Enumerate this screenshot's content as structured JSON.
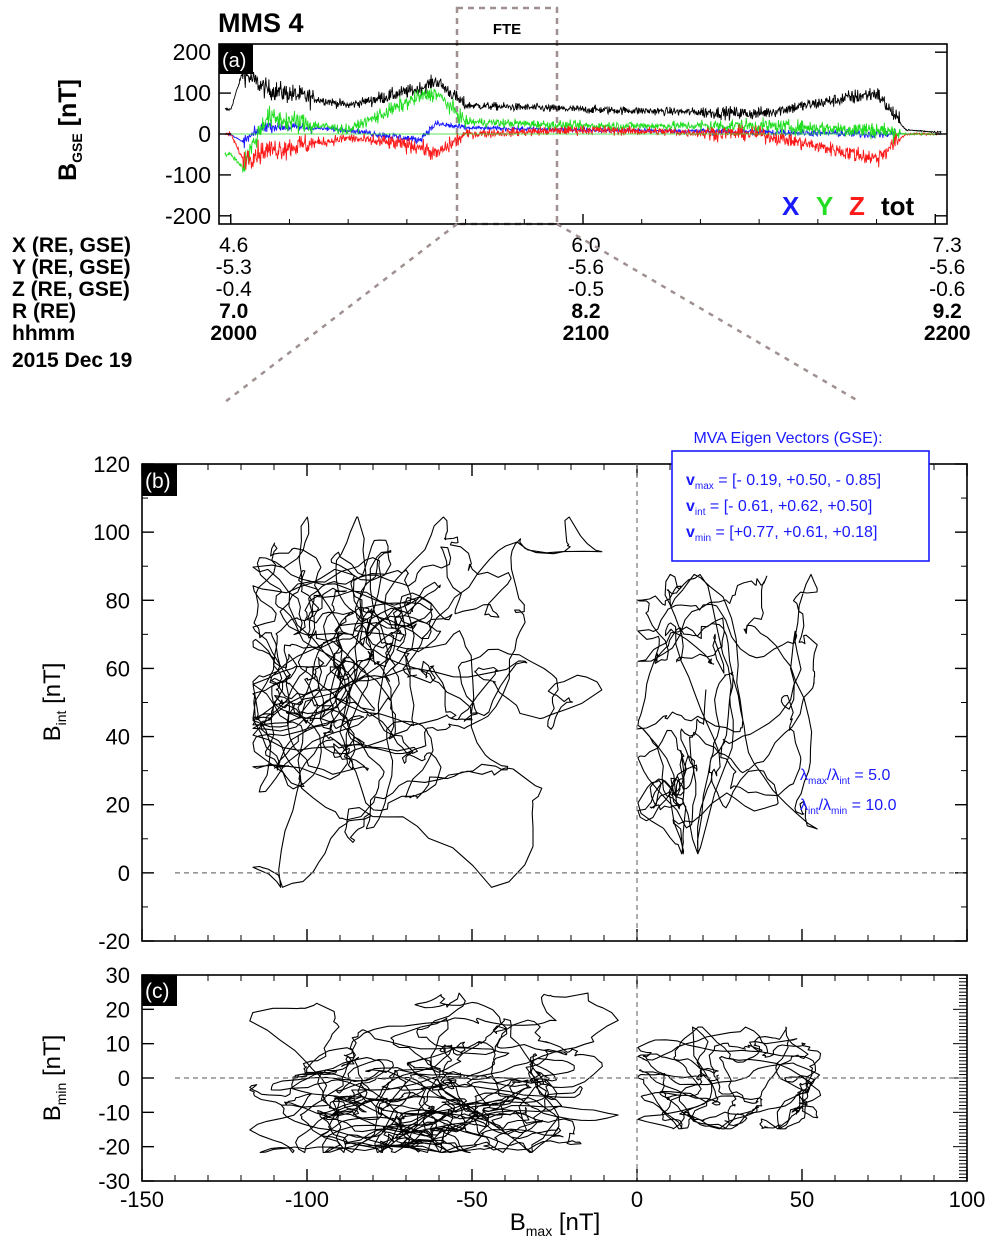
{
  "figure": {
    "spacecraft": "MMS 4",
    "fte_label": "FTE"
  },
  "panel_a": {
    "label": "(a)",
    "ylabel_main": "B",
    "ylabel_sub": "GSE",
    "ylabel_unit": " [nT]",
    "legend": [
      {
        "text": "X",
        "color": "#1a1aff"
      },
      {
        "text": "Y",
        "color": "#22dd22"
      },
      {
        "text": "Z",
        "color": "#ff1a1a"
      },
      {
        "text": "tot",
        "color": "#000000"
      }
    ],
    "orbit_rows": [
      {
        "label": "X (RE, GSE)",
        "values": [
          "4.6",
          "6.0",
          "7.3"
        ],
        "bold": false
      },
      {
        "label": "Y (RE, GSE)",
        "values": [
          "-5.3",
          "-5.6",
          "-5.6"
        ],
        "bold": false
      },
      {
        "label": "Z (RE, GSE)",
        "values": [
          "-0.4",
          "-0.5",
          "-0.6"
        ],
        "bold": false
      },
      {
        "label": "R (RE)",
        "values": [
          "7.0",
          "8.2",
          "9.2"
        ],
        "bold": true
      },
      {
        "label": "hhmm",
        "values": [
          "2000",
          "2100",
          "2200"
        ],
        "bold": true
      }
    ],
    "date": "2015 Dec 19"
  },
  "panel_b": {
    "label": "(b)",
    "ylabel_main": "B",
    "ylabel_sub": "int",
    "ylabel_unit": " [nT]",
    "mva_title": "MVA Eigen Vectors (GSE):",
    "mva_rows": [
      {
        "v": "v",
        "sub": "max",
        "text": " = [- 0.19, +0.50, - 0.85]"
      },
      {
        "v": "v",
        "sub": "int",
        "text": " = [- 0.61, +0.62, +0.50]"
      },
      {
        "v": "v",
        "sub": "min",
        "text": " = [+0.77, +0.61, +0.18]"
      }
    ],
    "ratio1": {
      "a": "max",
      "b": "int",
      "text": " = 5.0"
    },
    "ratio2": {
      "a": "int",
      "b": "min",
      "text": " = 10.0"
    },
    "lambda": "λ"
  },
  "panel_c": {
    "label": "(c)",
    "ylabel_main": "B",
    "ylabel_sub": "min",
    "ylabel_unit": " [nT]",
    "xlabel_main": "B",
    "xlabel_sub": "max",
    "xlabel_unit": " [nT]"
  },
  "chart_data": [
    {
      "type": "line",
      "panel": "a",
      "title": "MMS 4",
      "ylabel": "B_GSE [nT]",
      "x_time_labels": [
        "2000",
        "2100",
        "2200"
      ],
      "ylim": [
        -220,
        220
      ],
      "yticks": [
        -200,
        -100,
        0,
        100,
        200
      ],
      "fte_interval": [
        "~2020",
        "~2051"
      ],
      "series": [
        {
          "name": "X",
          "color": "#1a1aff",
          "approx": {
            "times": [
              "2000",
              "2002",
              "2006",
              "2020",
              "2032",
              "2035",
              "2040",
              "2100",
              "2130",
              "2150",
              "2155",
              "2200"
            ],
            "values": [
              0,
              -20,
              20,
              10,
              -15,
              25,
              15,
              10,
              5,
              0,
              0,
              0
            ]
          }
        },
        {
          "name": "Y",
          "color": "#22dd22",
          "approx": {
            "times": [
              "2000",
              "2002",
              "2006",
              "2020",
              "2032",
              "2035",
              "2040",
              "2100",
              "2130",
              "2150",
              "2155",
              "2200"
            ],
            "values": [
              -50,
              -80,
              40,
              10,
              90,
              100,
              30,
              20,
              20,
              10,
              0,
              0
            ]
          }
        },
        {
          "name": "Z",
          "color": "#ff1a1a",
          "approx": {
            "times": [
              "2000",
              "2002",
              "2006",
              "2020",
              "2032",
              "2035",
              "2040",
              "2100",
              "2130",
              "2150",
              "2155",
              "2200"
            ],
            "values": [
              0,
              -60,
              -40,
              -10,
              -30,
              -50,
              0,
              10,
              0,
              -60,
              0,
              0
            ]
          }
        },
        {
          "name": "tot",
          "color": "#000000",
          "approx": {
            "times": [
              "2000",
              "2002",
              "2006",
              "2020",
              "2032",
              "2035",
              "2040",
              "2100",
              "2130",
              "2150",
              "2155",
              "2200"
            ],
            "values": [
              60,
              150,
              110,
              70,
              110,
              130,
              70,
              60,
              50,
              100,
              10,
              5
            ]
          }
        }
      ]
    },
    {
      "type": "line",
      "panel": "b",
      "xlim": [
        -150,
        100
      ],
      "ylim": [
        -20,
        120
      ],
      "ylabel": "B_int [nT]",
      "yticks": [
        -20,
        0,
        20,
        40,
        60,
        80,
        100,
        120
      ],
      "hodogram_envelope": {
        "region1_Bmax_range": [
          -117,
          -10
        ],
        "region1_Bint_range": [
          -5,
          105
        ],
        "region2_Bmax_range": [
          0,
          55
        ],
        "region2_Bint_range": [
          5,
          88
        ]
      }
    },
    {
      "type": "line",
      "panel": "c",
      "xlim": [
        -150,
        100
      ],
      "ylim": [
        -30,
        30
      ],
      "xlabel": "B_max [nT]",
      "ylabel": "B_min [nT]",
      "xticks": [
        -150,
        -100,
        -50,
        0,
        50,
        100
      ],
      "yticks": [
        -30,
        -20,
        -10,
        0,
        10,
        20,
        30
      ],
      "hodogram_envelope": {
        "region1_Bmax_range": [
          -118,
          -5
        ],
        "region1_Bmin_range": [
          -22,
          25
        ],
        "region2_Bmax_range": [
          0,
          56
        ],
        "region2_Bmin_range": [
          -15,
          15
        ]
      }
    }
  ]
}
